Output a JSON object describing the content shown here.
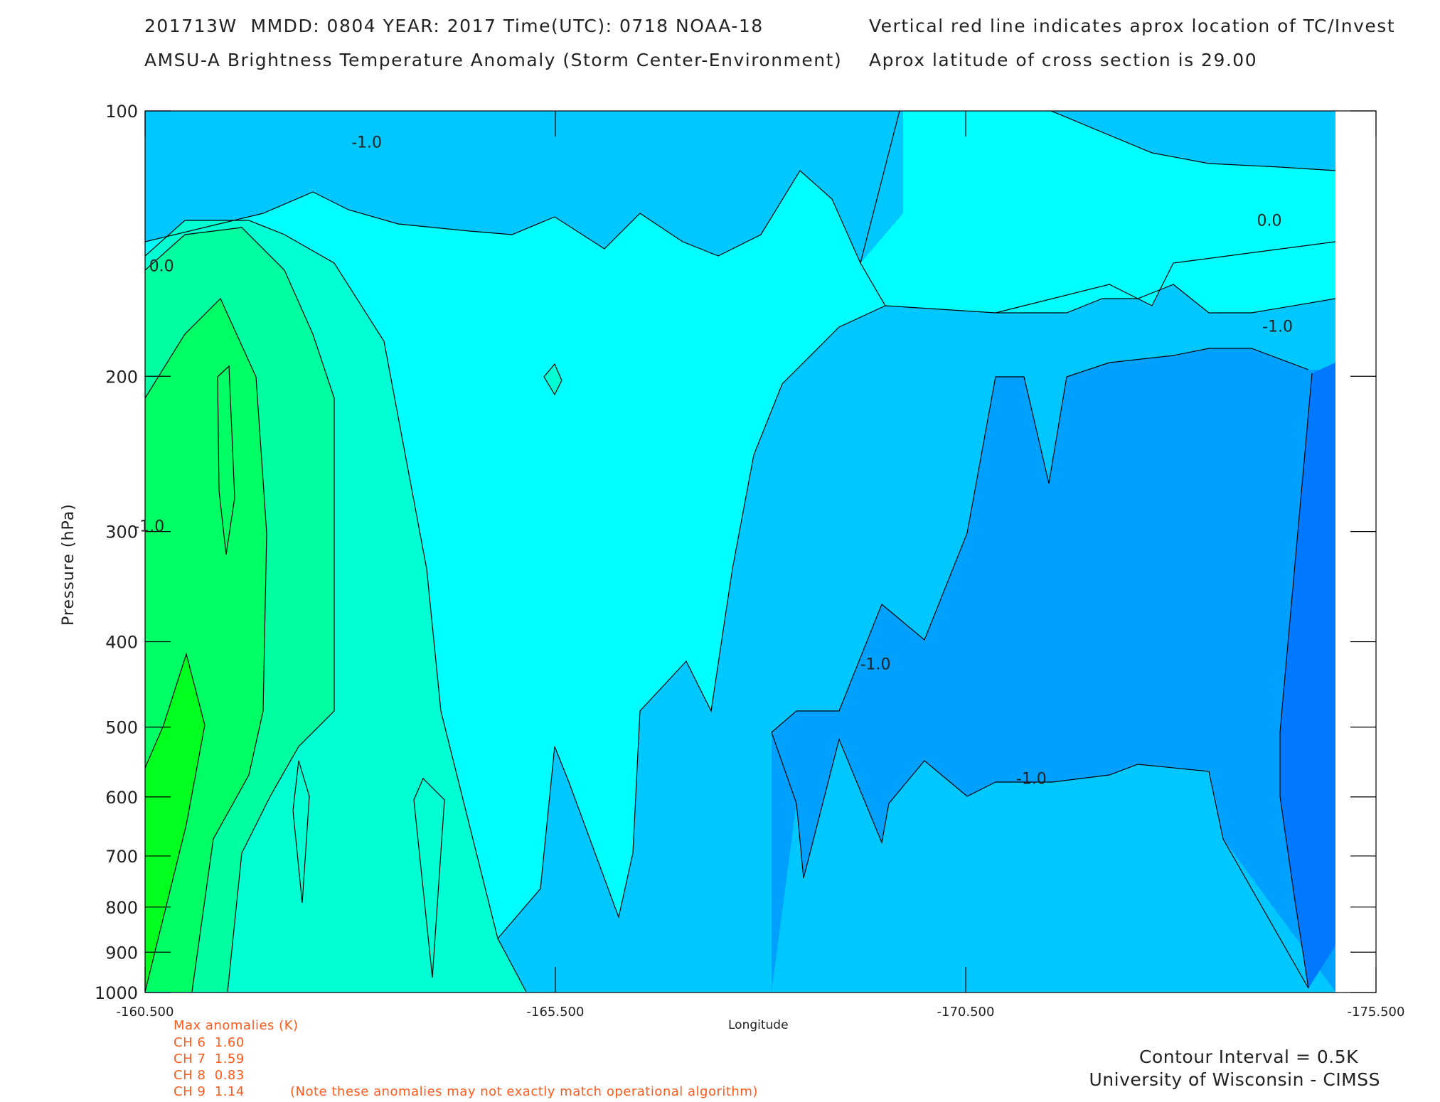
{
  "header": {
    "line1_left": "201713W  MMDD: 0804 YEAR: 2017 Time(UTC): 0718 NOAA-18",
    "line2_left": "AMSU-A Brightness Temperature Anomaly (Storm Center-Environment)",
    "line1_right": "Vertical red line indicates aprox location of TC/Invest",
    "line2_right": "Aprox latitude of cross section is 29.00"
  },
  "chart_data": {
    "type": "heatmap",
    "title": "AMSU-A Brightness Temperature Anomaly (Storm Center-Environment)",
    "xlabel": "Longitude",
    "ylabel": "Pressure (hPa)",
    "xlim": [
      -160.5,
      -175.5
    ],
    "ylim": [
      1000,
      100
    ],
    "y_scale": "log",
    "x_ticks": [
      "-160.500",
      "-165.500",
      "-170.500",
      "-175.500"
    ],
    "x_tick_values": [
      -160.5,
      -165.5,
      -170.5,
      -175.5
    ],
    "y_ticks": [
      "100",
      "200",
      "300",
      "400",
      "500",
      "600",
      "700",
      "800",
      "900",
      "1000"
    ],
    "y_tick_values": [
      100,
      200,
      300,
      400,
      500,
      600,
      700,
      800,
      900,
      1000
    ],
    "contour_interval": "0.5K",
    "contour_labels": [
      {
        "text": "-1.0",
        "lon": -163.2,
        "p": 110
      },
      {
        "text": "0.0",
        "lon": -160.7,
        "p": 152
      },
      {
        "text": "0.0",
        "lon": -174.2,
        "p": 135
      },
      {
        "text": "-1.0",
        "lon": -174.3,
        "p": 178
      },
      {
        "text": "-1.0",
        "lon": -160.55,
        "p": 300
      },
      {
        "text": "-1.0",
        "lon": -169.4,
        "p": 430
      },
      {
        "text": "-1.0",
        "lon": -171.3,
        "p": 580
      }
    ],
    "regions": [
      {
        "level": "-2.0",
        "color": "#0078ff",
        "description": "strongest negative anomaly near -175.5 from 190 to 870 hPa"
      },
      {
        "level": "-1.5",
        "color": "#00a0ff",
        "description": "negative anomaly west of -168 from 200 to 700 hPa"
      },
      {
        "level": "-1.0",
        "color": "#00c8ff",
        "description": "band near 100-150 hPa and lower levels east of -165.5"
      },
      {
        "level": "-0.5",
        "color": "#00ffff",
        "description": "central band near -165 to -166"
      },
      {
        "level": "0.0",
        "color": "#00ffd2",
        "description": "warm anomaly region near -162 to -163"
      },
      {
        "level": "0.5",
        "color": "#00ffa0",
        "description": "warm anomaly core near -161"
      },
      {
        "level": "1.0",
        "color": "#00ff64",
        "description": "strongest warm anomaly near -160.5 at 500-1000 hPa"
      },
      {
        "level": "1.5",
        "color": "#00ff1e",
        "description": "peak warm anomaly near -160.5, 600 hPa"
      }
    ]
  },
  "anomalies": {
    "title": "Max anomalies (K)",
    "rows": [
      {
        "label": "CH 6  1.60"
      },
      {
        "label": "CH 7  1.59"
      },
      {
        "label": "CH 8  0.83"
      },
      {
        "label": "CH 9  1.14"
      }
    ],
    "note": "(Note these anomalies may not exactly match operational algorithm)"
  },
  "footer": {
    "contour_interval": "Contour Interval = 0.5K",
    "credit": "University of Wisconsin - CIMSS"
  }
}
